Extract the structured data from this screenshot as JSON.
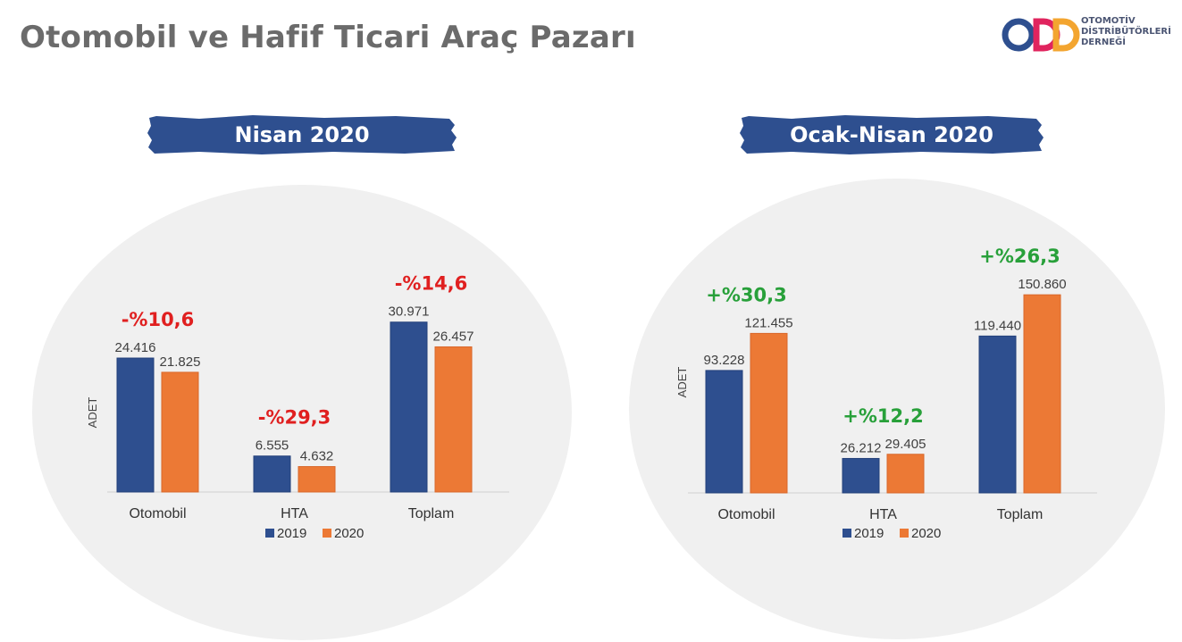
{
  "title": "Otomobil ve Hafif Ticari Araç Pazarı",
  "logo": {
    "mark": "ODD",
    "lines": [
      "OTOMOTİV",
      "DİSTRİBÜTÖRLERİ",
      "DERNEĞİ"
    ]
  },
  "colors": {
    "series_2019": "#2e4f8f",
    "series_2020": "#ec7935",
    "negative": "#e02020",
    "positive": "#28a03a",
    "banner": "#2e4f8f",
    "ellipse": "#f0f0f0"
  },
  "chart_data": [
    {
      "type": "bar",
      "title": "Nisan 2020",
      "ylabel": "ADET",
      "categories": [
        "Otomobil",
        "HTA",
        "Toplam"
      ],
      "series": [
        {
          "name": "2019",
          "values": [
            24416,
            6555,
            30971
          ],
          "labels": [
            "24.416",
            "6.555",
            "30.971"
          ]
        },
        {
          "name": "2020",
          "values": [
            21825,
            4632,
            26457
          ],
          "labels": [
            "21.825",
            "4.632",
            "26.457"
          ]
        }
      ],
      "changes": [
        "-%10,6",
        "-%29,3",
        "-%14,6"
      ],
      "change_sign": "negative",
      "ylim": [
        0,
        35000
      ],
      "legend": "bottom"
    },
    {
      "type": "bar",
      "title": "Ocak-Nisan 2020",
      "ylabel": "ADET",
      "categories": [
        "Otomobil",
        "HTA",
        "Toplam"
      ],
      "series": [
        {
          "name": "2019",
          "values": [
            93228,
            26212,
            119440
          ],
          "labels": [
            "93.228",
            "26.212",
            "119.440"
          ]
        },
        {
          "name": "2020",
          "values": [
            121455,
            29405,
            150860
          ],
          "labels": [
            "121.455",
            "29.405",
            "150.860"
          ]
        }
      ],
      "changes": [
        "+%30,3",
        "+%12,2",
        "+%26,3"
      ],
      "change_sign": "positive",
      "ylim": [
        0,
        170000
      ],
      "legend": "bottom"
    }
  ]
}
